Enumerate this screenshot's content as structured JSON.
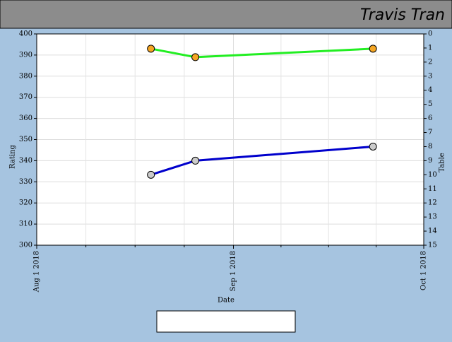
{
  "header": {
    "name": "Travis Tran"
  },
  "chart_data": {
    "type": "line",
    "xlabel": "Date",
    "ylabel": "Rating",
    "y2label": "Table",
    "x": [
      "2018-08-19",
      "2018-08-26",
      "2018-09-23"
    ],
    "xlim": [
      "2018-08-01",
      "2018-10-01"
    ],
    "xticks": [
      {
        "value": "2018-08-01",
        "label": "Aug 1 2018"
      },
      {
        "value": "2018-09-01",
        "label": "Sep 1 2018"
      },
      {
        "value": "2018-10-01",
        "label": "Oct 1 2018"
      }
    ],
    "ylim": [
      300,
      400
    ],
    "yticks": [
      300,
      310,
      320,
      330,
      340,
      350,
      360,
      370,
      380,
      390,
      400
    ],
    "y2lim": [
      15,
      0
    ],
    "y2ticks": [
      0,
      1,
      2,
      3,
      4,
      5,
      6,
      7,
      8,
      9,
      10,
      11,
      12,
      13,
      14,
      15
    ],
    "grid": true,
    "series": [
      {
        "name": "Rating",
        "color": "#22ee22",
        "marker_color": "#f5a623",
        "values": [
          393,
          389,
          393
        ]
      },
      {
        "name": "Table",
        "color": "#0000cc",
        "marker_color": "#cccccc",
        "axis": "y2",
        "values": [
          10,
          9,
          8
        ]
      }
    ]
  }
}
